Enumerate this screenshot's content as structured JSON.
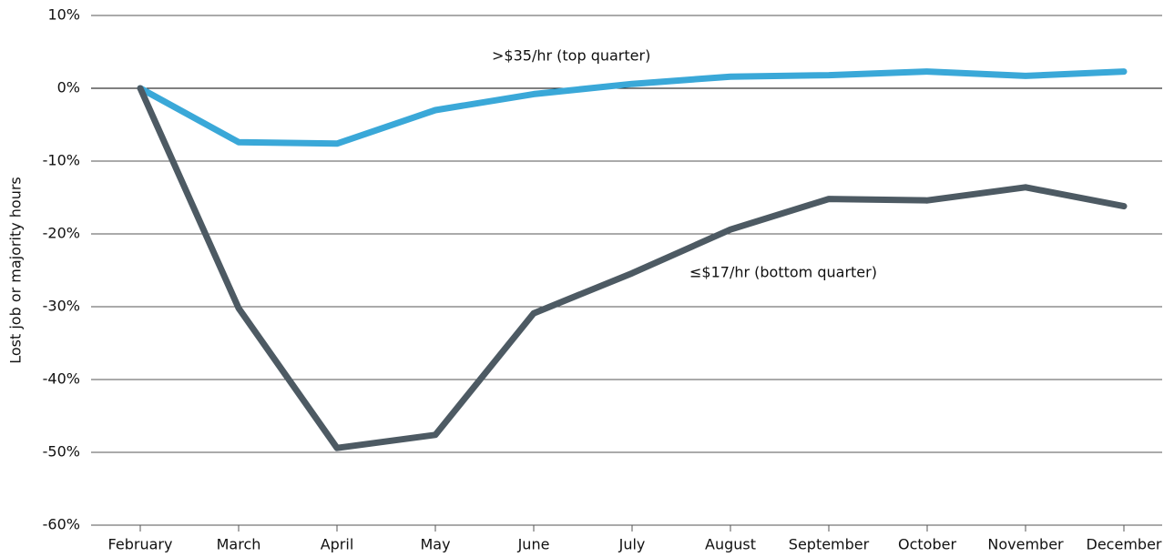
{
  "chart_data": {
    "type": "line",
    "ylabel": "Lost job or majority hours",
    "categories": [
      "February",
      "March",
      "April",
      "May",
      "June",
      "July",
      "August",
      "September",
      "October",
      "November",
      "December"
    ],
    "series": [
      {
        "name": ">$35/hr (top quarter)",
        "color": "#3aa8d8",
        "values": [
          0,
          -7.4,
          -7.6,
          -3.0,
          -0.8,
          0.6,
          1.6,
          1.8,
          2.3,
          1.7,
          2.3
        ]
      },
      {
        "name": "≤$17/hr (bottom quarter)",
        "color": "#4d5a63",
        "values": [
          0,
          -30.2,
          -49.4,
          -47.6,
          -30.9,
          -25.4,
          -19.4,
          -15.2,
          -15.4,
          -13.6,
          -16.2
        ]
      }
    ],
    "ylim": [
      -60,
      10
    ],
    "yticks": [
      {
        "value": 10,
        "label": "10%"
      },
      {
        "value": 0,
        "label": "0%"
      },
      {
        "value": -10,
        "label": "-10%"
      },
      {
        "value": -20,
        "label": "-20%"
      },
      {
        "value": -30,
        "label": "-30%"
      },
      {
        "value": -40,
        "label": "-40%"
      },
      {
        "value": -50,
        "label": "-50%"
      },
      {
        "value": -60,
        "label": "-60%"
      }
    ],
    "grid": true
  }
}
